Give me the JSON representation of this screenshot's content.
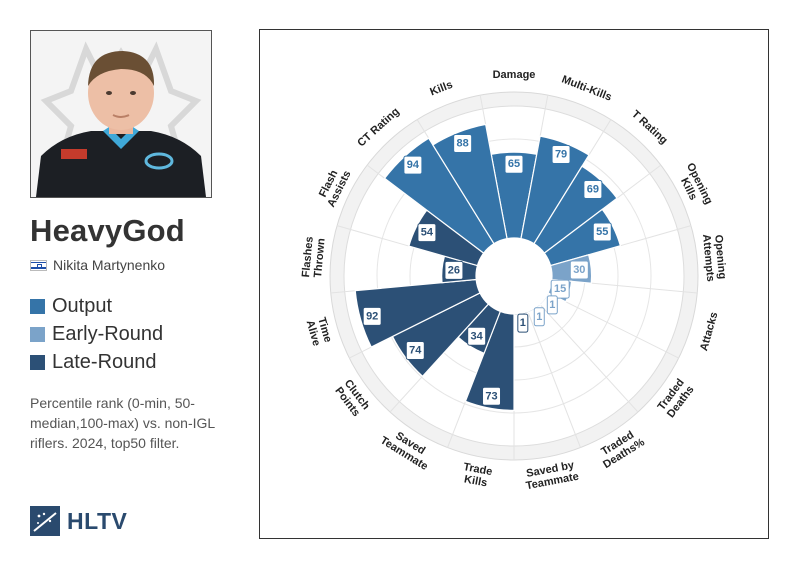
{
  "player": {
    "name": "HeavyGod",
    "real_name": "Nikita Martynenko"
  },
  "legend": [
    {
      "label": "Output",
      "color": "#3574a8"
    },
    {
      "label": "Early-Round",
      "color": "#7ba3c9"
    },
    {
      "label": "Late-Round",
      "color": "#2c5076"
    }
  ],
  "description": "Percentile rank (0-min, 50-median,100-max) vs. non-IGL riflers. 2024, top50 filter.",
  "brand": "HLTV",
  "chart_data": {
    "type": "polar-bar",
    "scale": [
      0,
      100
    ],
    "grid": true,
    "categories": [
      "Damage",
      "Multi-Kills",
      "T Rating",
      "Opening Kills",
      "Opening Attempts",
      "Attacks",
      "Traded Deaths",
      "Traded Deaths%",
      "Saved by Teammate",
      "Trade Kills",
      "Saved Teammate",
      "Clutch Points",
      "Time Alive",
      "Flashes Thrown",
      "Flash Assists",
      "CT Rating",
      "Kills"
    ],
    "groups": [
      "Output",
      "Output",
      "Output",
      "Output",
      "Early-Round",
      "Early-Round",
      "Early-Round",
      "Early-Round",
      "Late-Round",
      "Late-Round",
      "Late-Round",
      "Late-Round",
      "Late-Round",
      "Late-Round",
      "Late-Round",
      "Output",
      "Output"
    ],
    "values": [
      65,
      79,
      69,
      55,
      30,
      15,
      1,
      1,
      1,
      73,
      34,
      74,
      92,
      26,
      54,
      94,
      88
    ]
  }
}
